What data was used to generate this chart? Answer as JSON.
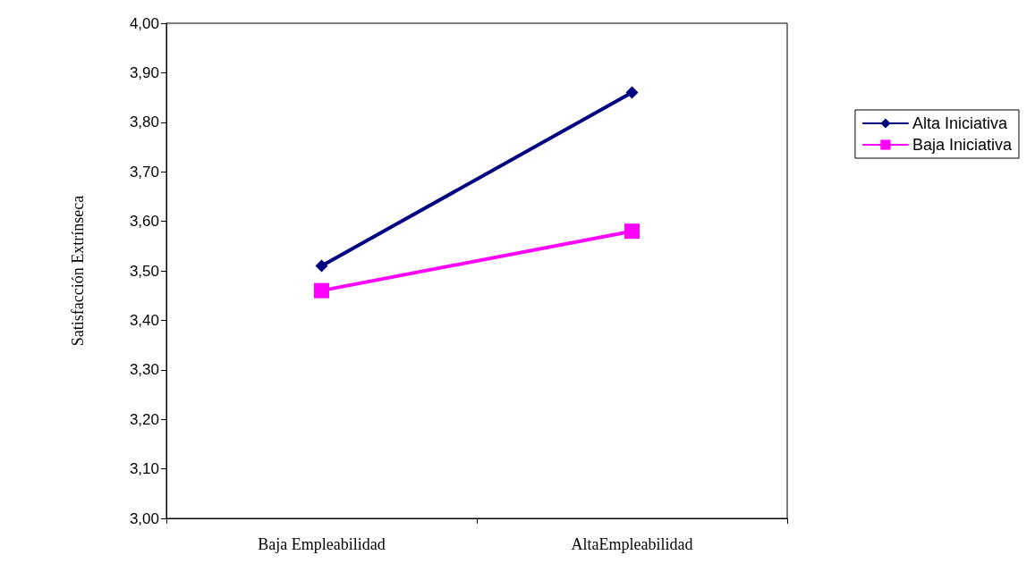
{
  "chart_data": {
    "type": "line",
    "ylabel": "Satisfacción Extrínseca",
    "categories": [
      "Baja Empleabilidad",
      "AltaEmpleabilidad"
    ],
    "series": [
      {
        "name": "Alta Iniciativa",
        "color": "#000080",
        "marker": "diamond",
        "values": [
          3.51,
          3.86
        ]
      },
      {
        "name": "Baja Iniciativa",
        "color": "#ff00ff",
        "marker": "square",
        "values": [
          3.46,
          3.58
        ]
      }
    ],
    "ylim": [
      3.0,
      4.0
    ],
    "yticks": [
      {
        "value": 3.0,
        "label": "3,00"
      },
      {
        "value": 3.1,
        "label": "3,10"
      },
      {
        "value": 3.2,
        "label": "3,20"
      },
      {
        "value": 3.3,
        "label": "3,30"
      },
      {
        "value": 3.4,
        "label": "3,40"
      },
      {
        "value": 3.5,
        "label": "3,50"
      },
      {
        "value": 3.6,
        "label": "3,60"
      },
      {
        "value": 3.7,
        "label": "3,70"
      },
      {
        "value": 3.8,
        "label": "3,80"
      },
      {
        "value": 3.9,
        "label": "3,90"
      },
      {
        "value": 4.0,
        "label": "4,00"
      }
    ],
    "grid": false,
    "legend": "right",
    "line_style": "solid"
  }
}
